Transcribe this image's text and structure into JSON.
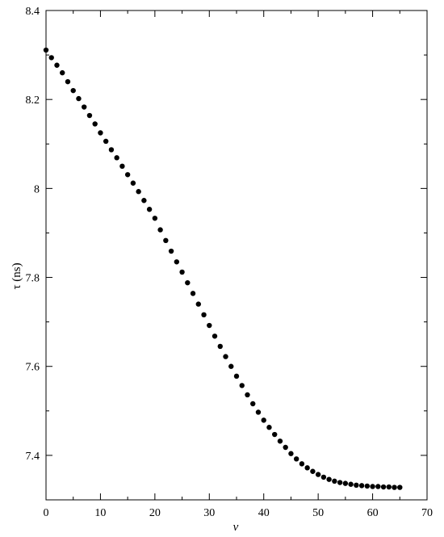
{
  "chart_data": {
    "type": "scatter",
    "title": "",
    "xlabel": "v",
    "ylabel": "τ (ns)",
    "xlim": [
      0,
      70
    ],
    "ylim": [
      7.3,
      8.4
    ],
    "xticks": [
      0,
      10,
      20,
      30,
      40,
      50,
      60,
      70
    ],
    "xtick_labels": [
      "0",
      "10",
      "20",
      "30",
      "40",
      "50",
      "60",
      "70"
    ],
    "yticks": [
      7.4,
      7.6,
      7.8,
      8.0,
      8.2,
      8.4
    ],
    "ytick_labels": [
      "7.4",
      "7.6",
      "7.8",
      "8",
      "8.2",
      "8.4"
    ],
    "grid": false,
    "marker_color": "#000000",
    "series": [
      {
        "x": [
          0,
          1,
          2,
          3,
          4,
          5,
          6,
          7,
          8,
          9,
          10,
          11,
          12,
          13,
          14,
          15,
          16,
          17,
          18,
          19,
          20,
          21,
          22,
          23,
          24,
          25,
          26,
          27,
          28,
          29,
          30,
          31,
          32,
          33,
          34,
          35,
          36,
          37,
          38,
          39,
          40,
          41,
          42,
          43,
          44,
          45,
          46,
          47,
          48,
          49,
          50,
          51,
          52,
          53,
          54,
          55,
          56,
          57,
          58,
          59,
          60,
          61,
          62,
          63,
          64,
          65
        ],
        "y": [
          8.311,
          8.294,
          8.277,
          8.26,
          8.24,
          8.22,
          8.202,
          8.183,
          8.164,
          8.145,
          8.125,
          8.106,
          8.087,
          8.069,
          8.05,
          8.031,
          8.012,
          7.993,
          7.973,
          7.953,
          7.933,
          7.907,
          7.883,
          7.859,
          7.835,
          7.812,
          7.788,
          7.764,
          7.74,
          7.716,
          7.692,
          7.668,
          7.645,
          7.622,
          7.6,
          7.578,
          7.557,
          7.536,
          7.516,
          7.497,
          7.479,
          7.463,
          7.447,
          7.432,
          7.418,
          7.404,
          7.392,
          7.381,
          7.372,
          7.364,
          7.357,
          7.351,
          7.346,
          7.342,
          7.339,
          7.337,
          7.335,
          7.333,
          7.332,
          7.331,
          7.33,
          7.33,
          7.329,
          7.329,
          7.328,
          7.328
        ]
      }
    ]
  }
}
